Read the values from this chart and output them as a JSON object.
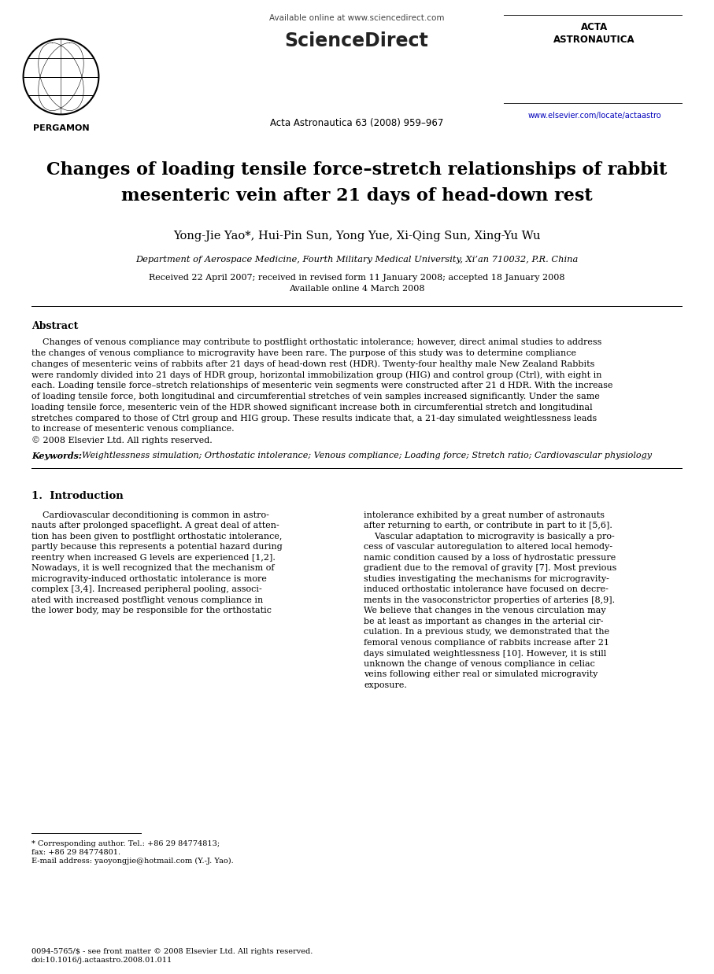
{
  "title_line1": "Changes of loading tensile force–stretch relationships of rabbit",
  "title_line2": "mesenteric vein after 21 days of head-down rest",
  "authors": "Yong-Jie Yao*, Hui-Pin Sun, Yong Yue, Xi-Qing Sun, Xing-Yu Wu",
  "affiliation": "Department of Aerospace Medicine, Fourth Military Medical University, Xi’an 710032, P.R. China",
  "dates_line1": "Received 22 April 2007; received in revised form 11 January 2008; accepted 18 January 2008",
  "dates_line2": "Available online 4 March 2008",
  "journal": "Acta Astronautica 63 (2008) 959–967",
  "available_online": "Available online at www.sciencedirect.com",
  "website": "www.elsevier.com/locate/actaastro",
  "publisher": "PERGAMON",
  "abstract_title": "Abstract",
  "keywords_label": "Keywords:",
  "keywords_text": "  Weightlessness simulation; Orthostatic intolerance; Venous compliance; Loading force; Stretch ratio; Cardiovascular physiology",
  "section1_title": "1.  Introduction",
  "footnote_lines": [
    "* Corresponding author. Tel.: +86 29 84774813;",
    "fax: +86 29 84774801.",
    "E-mail address: yaoyongjie@hotmail.com (Y.-J. Yao)."
  ],
  "footer_lines": [
    "0094-5765/$ - see front matter © 2008 Elsevier Ltd. All rights reserved.",
    "doi:10.1016/j.actaastro.2008.01.011"
  ],
  "abstract_lines": [
    "    Changes of venous compliance may contribute to postflight orthostatic intolerance; however, direct animal studies to address",
    "the changes of venous compliance to microgravity have been rare. The purpose of this study was to determine compliance",
    "changes of mesenteric veins of rabbits after 21 days of head-down rest (HDR). Twenty-four healthy male New Zealand Rabbits",
    "were randomly divided into 21 days of HDR group, horizontal immobilization group (HIG) and control group (Ctrl), with eight in",
    "each. Loading tensile force–stretch relationships of mesenteric vein segments were constructed after 21 d HDR. With the increase",
    "of loading tensile force, both longitudinal and circumferential stretches of vein samples increased significantly. Under the same",
    "loading tensile force, mesenteric vein of the HDR showed significant increase both in circumferential stretch and longitudinal",
    "stretches compared to those of Ctrl group and HIG group. These results indicate that, a 21-day simulated weightlessness leads",
    "to increase of mesenteric venous compliance.",
    "© 2008 Elsevier Ltd. All rights reserved."
  ],
  "col1_lines": [
    "    Cardiovascular deconditioning is common in astro-",
    "nauts after prolonged spaceflight. A great deal of atten-",
    "tion has been given to postflight orthostatic intolerance,",
    "partly because this represents a potential hazard during",
    "reentry when increased G levels are experienced [1,2].",
    "Nowadays, it is well recognized that the mechanism of",
    "microgravity-induced orthostatic intolerance is more",
    "complex [3,4]. Increased peripheral pooling, associ-",
    "ated with increased postflight venous compliance in",
    "the lower body, may be responsible for the orthostatic"
  ],
  "col2_lines": [
    "intolerance exhibited by a great number of astronauts",
    "after returning to earth, or contribute in part to it [5,6].",
    "    Vascular adaptation to microgravity is basically a pro-",
    "cess of vascular autoregulation to altered local hemody-",
    "namic condition caused by a loss of hydrostatic pressure",
    "gradient due to the removal of gravity [7]. Most previous",
    "studies investigating the mechanisms for microgravity-",
    "induced orthostatic intolerance have focused on decre-",
    "ments in the vasoconstrictor properties of arteries [8,9].",
    "We believe that changes in the venous circulation may",
    "be at least as important as changes in the arterial cir-",
    "culation. In a previous study, we demonstrated that the",
    "femoral venous compliance of rabbits increase after 21",
    "days simulated weightlessness [10]. However, it is still",
    "unknown the change of venous compliance in celiac",
    "veins following either real or simulated microgravity",
    "exposure."
  ],
  "bg_color": "#ffffff",
  "text_color": "#000000",
  "link_color": "#0000bb"
}
